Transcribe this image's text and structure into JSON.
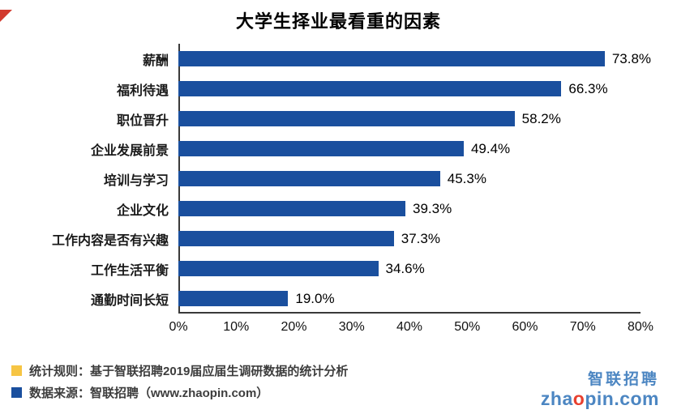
{
  "chart_data": {
    "type": "bar",
    "orientation": "horizontal",
    "title": "大学生择业最看重的因素",
    "categories": [
      "薪酬",
      "福利待遇",
      "职位晋升",
      "企业发展前景",
      "培训与学习",
      "企业文化",
      "工作内容是否有兴趣",
      "工作生活平衡",
      "通勤时间长短"
    ],
    "values": [
      73.8,
      66.3,
      58.2,
      49.4,
      45.3,
      39.3,
      37.3,
      34.6,
      19.0
    ],
    "value_labels": [
      "73.8%",
      "66.3%",
      "58.2%",
      "49.4%",
      "45.3%",
      "39.3%",
      "37.3%",
      "34.6%",
      "19.0%"
    ],
    "xlim": [
      0,
      80
    ],
    "x_ticks": [
      "0%",
      "10%",
      "20%",
      "30%",
      "40%",
      "50%",
      "60%",
      "70%",
      "80%"
    ],
    "bar_color": "#1A4F9E",
    "grid": false,
    "legend_position": "none"
  },
  "footer": {
    "notes": [
      {
        "color": "#F6C544",
        "text": "统计规则：基于智联招聘2019届应届生调研数据的统计分析"
      },
      {
        "color": "#1A4F9E",
        "text": "数据来源：智联招聘（www.zhaopin.com）"
      }
    ]
  },
  "logo": {
    "name": "智联招聘",
    "domain_prefix": "zha",
    "domain_accent": "o",
    "domain_suffix": "pin.com",
    "color": "#4C86C2",
    "accent_color": "#E8402F"
  }
}
